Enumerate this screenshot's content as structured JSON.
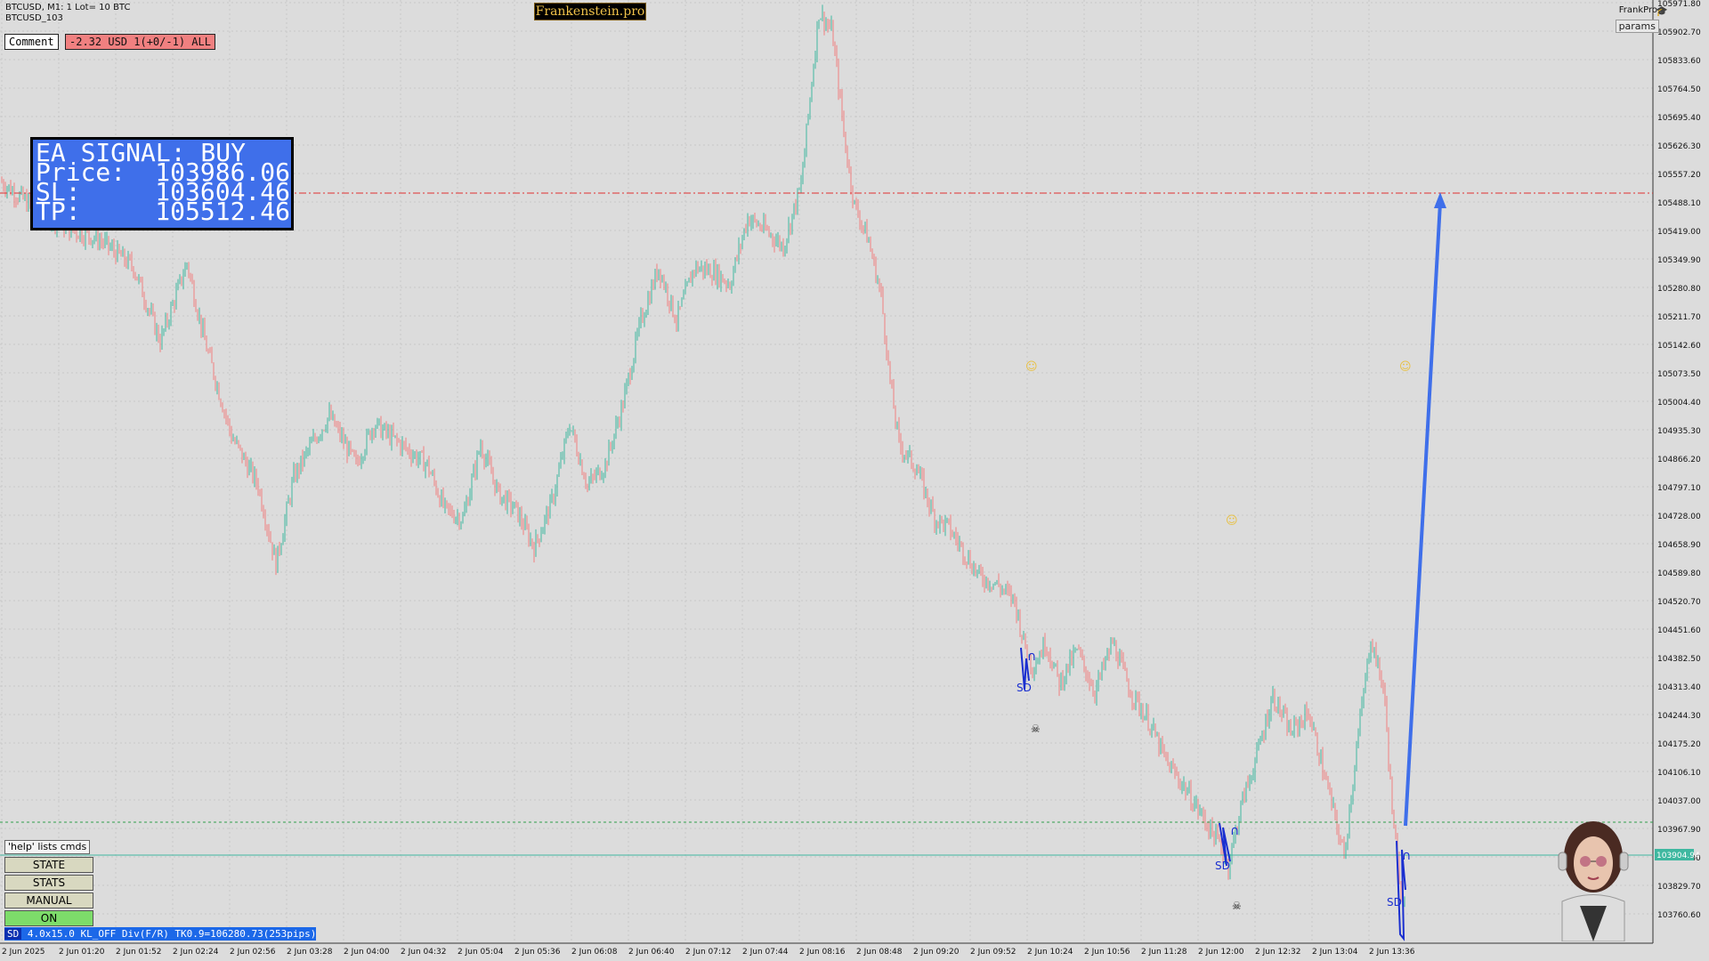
{
  "header": {
    "symbol_line": "BTCUSD, M1:  1 Lot= 10 BTC",
    "template_line": "BTCUSD_103",
    "brand": "Frankenstein.pro",
    "frankpro": "FrankPro",
    "params_button": "params"
  },
  "panel": {
    "comment_button": "Comment",
    "pnl_badge": "-2.32 USD 1(+0/-1) ALL"
  },
  "signal": {
    "title": "EA SIGNAL: BUY",
    "price_label": "Price:",
    "price_value": "103986.06",
    "sl_label": "SL:",
    "sl_value": "103604.46",
    "tp_label": "TP:",
    "tp_value": "105512.46"
  },
  "controls": {
    "help": "'help' lists cmds",
    "state": "STATE",
    "stats": "STATS",
    "manual": "MANUAL",
    "on": "ON",
    "status_sd": "SD",
    "status_text": " 4.0x15.0 KL_OFF Div(F/R) TK0.9=106280.73(253pips)"
  },
  "price_axis": {
    "labels": [
      "105971.80",
      "105902.70",
      "105833.60",
      "105764.50",
      "105695.40",
      "105626.30",
      "105557.20",
      "105488.10",
      "105419.00",
      "105349.90",
      "105280.80",
      "105211.70",
      "105142.60",
      "105073.50",
      "105004.40",
      "104935.30",
      "104866.20",
      "104797.10",
      "104728.00",
      "104658.90",
      "104589.80",
      "104520.70",
      "104451.60",
      "104382.50",
      "104313.40",
      "104244.30",
      "104175.20",
      "104106.10",
      "104037.00",
      "103967.90",
      "103898.80",
      "103829.70",
      "103760.60"
    ],
    "current_price": "103904.94"
  },
  "time_axis": {
    "labels": [
      "2 Jun 2025",
      "2 Jun 01:20",
      "2 Jun 01:52",
      "2 Jun 02:24",
      "2 Jun 02:56",
      "2 Jun 03:28",
      "2 Jun 04:00",
      "2 Jun 04:32",
      "2 Jun 05:04",
      "2 Jun 05:36",
      "2 Jun 06:08",
      "2 Jun 06:40",
      "2 Jun 07:12",
      "2 Jun 07:44",
      "2 Jun 08:16",
      "2 Jun 08:48",
      "2 Jun 09:20",
      "2 Jun 09:52",
      "2 Jun 10:24",
      "2 Jun 10:56",
      "2 Jun 11:28",
      "2 Jun 12:00",
      "2 Jun 12:32",
      "2 Jun 13:04",
      "2 Jun 13:36"
    ]
  },
  "colors": {
    "background": "#dcdcdc",
    "grid": "#c8c8c8",
    "bull": "#3fb8a0",
    "bear": "#f08080",
    "tp_line": "#e03030",
    "arrow": "#3f6fea",
    "signal_bg": "#3f6fea"
  },
  "markers": {
    "sd_label": "SD",
    "skull": "☠",
    "smile": "☺"
  },
  "chart_data": {
    "type": "candlestick",
    "symbol": "BTCUSD",
    "timeframe": "M1",
    "ylim": [
      103700,
      106000
    ],
    "tp_level": 105512.46,
    "sl_level": 103604.46,
    "entry_level": 103986.06,
    "bid_level": 103904.94,
    "path": [
      [
        0,
        105540
      ],
      [
        40,
        105470
      ],
      [
        80,
        105420
      ],
      [
        110,
        105400
      ],
      [
        150,
        105330
      ],
      [
        180,
        105150
      ],
      [
        210,
        105340
      ],
      [
        230,
        105150
      ],
      [
        260,
        104920
      ],
      [
        290,
        104800
      ],
      [
        310,
        104610
      ],
      [
        330,
        104820
      ],
      [
        350,
        104900
      ],
      [
        370,
        104970
      ],
      [
        400,
        104850
      ],
      [
        420,
        104950
      ],
      [
        450,
        104900
      ],
      [
        480,
        104850
      ],
      [
        500,
        104740
      ],
      [
        520,
        104720
      ],
      [
        540,
        104900
      ],
      [
        560,
        104780
      ],
      [
        580,
        104740
      ],
      [
        600,
        104650
      ],
      [
        620,
        104760
      ],
      [
        640,
        104950
      ],
      [
        660,
        104800
      ],
      [
        680,
        104850
      ],
      [
        700,
        105000
      ],
      [
        720,
        105200
      ],
      [
        740,
        105330
      ],
      [
        760,
        105200
      ],
      [
        780,
        105330
      ],
      [
        800,
        105320
      ],
      [
        820,
        105290
      ],
      [
        840,
        105450
      ],
      [
        860,
        105420
      ],
      [
        880,
        105380
      ],
      [
        900,
        105530
      ],
      [
        920,
        105950
      ],
      [
        935,
        105900
      ],
      [
        950,
        105620
      ],
      [
        960,
        105480
      ],
      [
        975,
        105400
      ],
      [
        990,
        105260
      ],
      [
        1000,
        105050
      ],
      [
        1010,
        104900
      ],
      [
        1030,
        104840
      ],
      [
        1050,
        104720
      ],
      [
        1065,
        104700
      ],
      [
        1080,
        104650
      ],
      [
        1100,
        104580
      ],
      [
        1120,
        104560
      ],
      [
        1140,
        104520
      ],
      [
        1150,
        104420
      ],
      [
        1160,
        104360
      ],
      [
        1175,
        104420
      ],
      [
        1190,
        104320
      ],
      [
        1210,
        104400
      ],
      [
        1230,
        104300
      ],
      [
        1250,
        104420
      ],
      [
        1270,
        104300
      ],
      [
        1290,
        104230
      ],
      [
        1310,
        104130
      ],
      [
        1330,
        104070
      ],
      [
        1350,
        104000
      ],
      [
        1370,
        103930
      ],
      [
        1380,
        103880
      ],
      [
        1395,
        104030
      ],
      [
        1410,
        104130
      ],
      [
        1430,
        104290
      ],
      [
        1450,
        104200
      ],
      [
        1470,
        104250
      ],
      [
        1490,
        104080
      ],
      [
        1510,
        103900
      ],
      [
        1525,
        104180
      ],
      [
        1540,
        104430
      ],
      [
        1555,
        104300
      ],
      [
        1565,
        103980
      ],
      [
        1575,
        103800
      ],
      [
        1585,
        103860
      ]
    ]
  }
}
